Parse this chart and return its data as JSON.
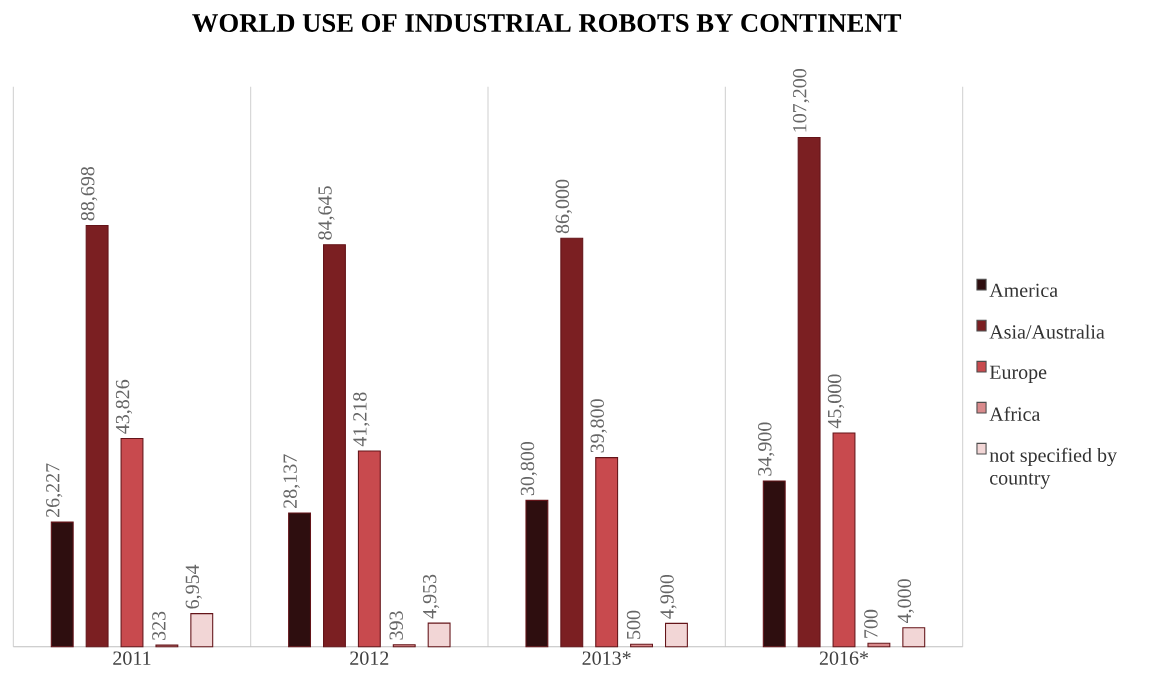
{
  "chart_data": {
    "type": "bar",
    "title": "WORLD USE OF INDUSTRIAL ROBOTS BY CONTINENT",
    "categories": [
      "2011",
      "2012",
      "2013*",
      "2016*"
    ],
    "series": [
      {
        "name": "America",
        "color": "#2e0e0f",
        "values": [
          26227,
          28137,
          30800,
          34900
        ],
        "value_labels": [
          "26,227",
          "28,137",
          "30,800",
          "34,900"
        ]
      },
      {
        "name": "Asia/Australia",
        "color": "#7b1f22",
        "values": [
          88698,
          84645,
          86000,
          107200
        ],
        "value_labels": [
          "88,698",
          "84,645",
          "86,000",
          "107,200"
        ]
      },
      {
        "name": "Europe",
        "color": "#c84a4e",
        "values": [
          43826,
          41218,
          39800,
          45000
        ],
        "value_labels": [
          "43,826",
          "41,218",
          "39,800",
          "45,000"
        ]
      },
      {
        "name": "Africa",
        "color": "#d98a8c",
        "values": [
          323,
          393,
          500,
          700
        ],
        "value_labels": [
          "323",
          "393",
          "500",
          "700"
        ]
      },
      {
        "name": "not specified by country",
        "color": "#f2d6d6",
        "values": [
          6954,
          4953,
          4900,
          4000
        ],
        "value_labels": [
          "6,954",
          "4,953",
          "4,900",
          "4,000"
        ]
      }
    ],
    "legend": "right",
    "grid": "x"
  }
}
